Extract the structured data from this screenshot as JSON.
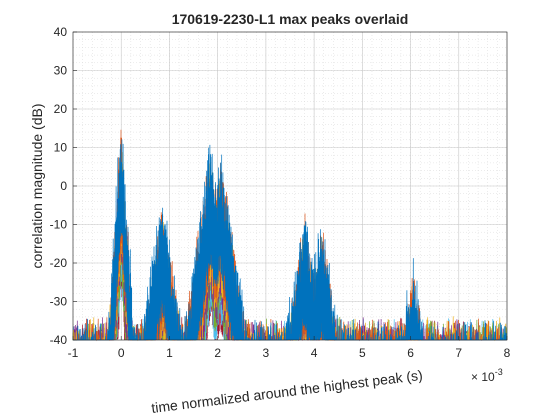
{
  "chart_data": {
    "type": "line",
    "title": "170619-2230-L1 max peaks overlaid",
    "xlabel": "time normalized around the highest peak (s)",
    "ylabel": "correlation magnitude (dB)",
    "x_exponent_label": "× 10",
    "x_exponent_power": "-3",
    "x_scale_factor": 0.001,
    "xlim": [
      -1,
      8
    ],
    "ylim": [
      -40,
      40
    ],
    "xticks": [
      -1,
      0,
      1,
      2,
      3,
      4,
      5,
      6,
      7,
      8
    ],
    "yticks": [
      -40,
      -30,
      -20,
      -10,
      0,
      10,
      20,
      30,
      40
    ],
    "grid": true,
    "minor_grid": true,
    "legend": "none",
    "noise_floor_db": -38,
    "series_colors": [
      "#0072BD",
      "#D95319",
      "#EDB120",
      "#7E2F8E",
      "#77AC30",
      "#4DBEEE",
      "#A2142F"
    ],
    "peaks": [
      {
        "x": 0.0,
        "y": 18
      },
      {
        "x": 0.85,
        "y": -3
      },
      {
        "x": 1.85,
        "y": 10
      },
      {
        "x": 2.05,
        "y": 9
      },
      {
        "x": 3.8,
        "y": -6
      },
      {
        "x": 4.15,
        "y": -9
      },
      {
        "x": 6.05,
        "y": -20
      }
    ]
  }
}
